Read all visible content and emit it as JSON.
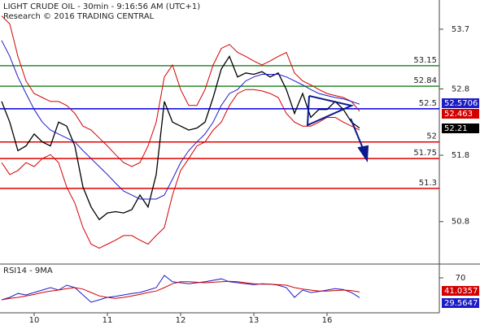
{
  "chart_data": [
    {
      "type": "line",
      "title": "LIGHT CRUDE OIL - 30min - 9:16:56 AM (UTC+1)",
      "subtitle": "Research © 2016 TRADING CENTRAL",
      "categories": [
        null,
        null,
        null,
        null,
        "10",
        null,
        null,
        null,
        null,
        null,
        null,
        null,
        null,
        "11",
        null,
        null,
        null,
        null,
        null,
        null,
        null,
        null,
        "12",
        null,
        null,
        null,
        null,
        null,
        null,
        null,
        null,
        "13",
        null,
        null,
        null,
        null,
        null,
        null,
        null,
        null,
        "16",
        null,
        null,
        null,
        null
      ],
      "ylim": [
        50.16,
        54.14
      ],
      "yticks": [
        53.7,
        52.8,
        51.8,
        50.8
      ],
      "series": [
        {
          "color": "#000000",
          "values": [
            52.61,
            52.3,
            51.87,
            51.94,
            52.12,
            52.0,
            51.94,
            52.3,
            52.24,
            51.94,
            51.32,
            51.02,
            50.83,
            50.93,
            50.95,
            50.93,
            50.98,
            51.2,
            51.02,
            51.51,
            52.61,
            52.3,
            52.24,
            52.18,
            52.21,
            52.3,
            52.67,
            53.1,
            53.29,
            52.98,
            53.04,
            53.02,
            53.06,
            52.98,
            53.04,
            52.79,
            52.43,
            52.73,
            52.37,
            52.49,
            52.49,
            52.61,
            52.49,
            52.3,
            52.21
          ]
        },
        {
          "color": "#d40000",
          "values": [
            53.9,
            53.78,
            53.29,
            52.92,
            52.73,
            52.67,
            52.61,
            52.61,
            52.55,
            52.43,
            52.24,
            52.18,
            52.06,
            51.94,
            51.81,
            51.69,
            51.63,
            51.69,
            51.94,
            52.3,
            52.98,
            53.16,
            52.79,
            52.55,
            52.55,
            52.79,
            53.16,
            53.41,
            53.47,
            53.35,
            53.29,
            53.22,
            53.16,
            53.22,
            53.29,
            53.35,
            53.04,
            52.92,
            52.86,
            52.79,
            52.73,
            52.7,
            52.67,
            52.61,
            52.463
          ]
        },
        {
          "color": "#d40000",
          "values": [
            51.69,
            51.51,
            51.57,
            51.69,
            51.63,
            51.75,
            51.81,
            51.69,
            51.32,
            51.08,
            50.71,
            50.46,
            50.4,
            50.46,
            50.52,
            50.59,
            50.59,
            50.52,
            50.46,
            50.59,
            50.71,
            51.2,
            51.57,
            51.75,
            51.94,
            52.0,
            52.18,
            52.3,
            52.55,
            52.73,
            52.79,
            52.79,
            52.77,
            52.73,
            52.67,
            52.43,
            52.3,
            52.24,
            52.24,
            52.3,
            52.37,
            52.37,
            52.3,
            52.24,
            52.18
          ]
        },
        {
          "color": "#1c1cc8",
          "values": [
            53.53,
            53.29,
            52.98,
            52.73,
            52.49,
            52.3,
            52.18,
            52.12,
            52.06,
            52.0,
            51.87,
            51.75,
            51.63,
            51.51,
            51.38,
            51.26,
            51.2,
            51.14,
            51.14,
            51.14,
            51.2,
            51.44,
            51.69,
            51.87,
            52.0,
            52.12,
            52.3,
            52.55,
            52.73,
            52.79,
            52.92,
            52.98,
            53.02,
            53.02,
            53.02,
            52.98,
            52.92,
            52.86,
            52.79,
            52.73,
            52.7,
            52.67,
            52.65,
            52.61,
            52.5706
          ]
        }
      ],
      "levels": [
        {
          "value": 53.15,
          "color": "#2a8a2a"
        },
        {
          "value": 52.84,
          "color": "#2a8a2a"
        },
        {
          "value": 52.5,
          "color": "#0000e0"
        },
        {
          "value": 52,
          "color": "#e00000"
        },
        {
          "value": 51.75,
          "color": "#e00000"
        },
        {
          "value": 51.3,
          "color": "#e00000"
        }
      ]
    },
    {
      "type": "line",
      "title": "RSI14 - 9MA",
      "ylim": [
        0,
        100
      ],
      "yticks": [
        70
      ],
      "series": [
        {
          "color": "#1c1cc8",
          "values": [
            25,
            30,
            38,
            35,
            40,
            45,
            50,
            45,
            55,
            50,
            35,
            20,
            25,
            30,
            32,
            35,
            38,
            40,
            45,
            50,
            75,
            62,
            60,
            58,
            60,
            62,
            65,
            68,
            62,
            60,
            58,
            56,
            58,
            57,
            55,
            50,
            30,
            45,
            40,
            42,
            45,
            48,
            46,
            40,
            29.5647
          ]
        },
        {
          "color": "#d40000",
          "values": [
            25,
            28,
            30,
            33,
            36,
            40,
            43,
            45,
            48,
            50,
            47,
            40,
            33,
            30,
            28,
            30,
            33,
            36,
            40,
            43,
            50,
            58,
            62,
            62,
            61,
            60,
            61,
            62,
            63,
            62,
            60,
            58,
            57,
            57,
            56,
            55,
            50,
            47,
            45,
            43,
            43,
            44,
            45,
            44,
            41.0357
          ]
        }
      ]
    }
  ]
}
